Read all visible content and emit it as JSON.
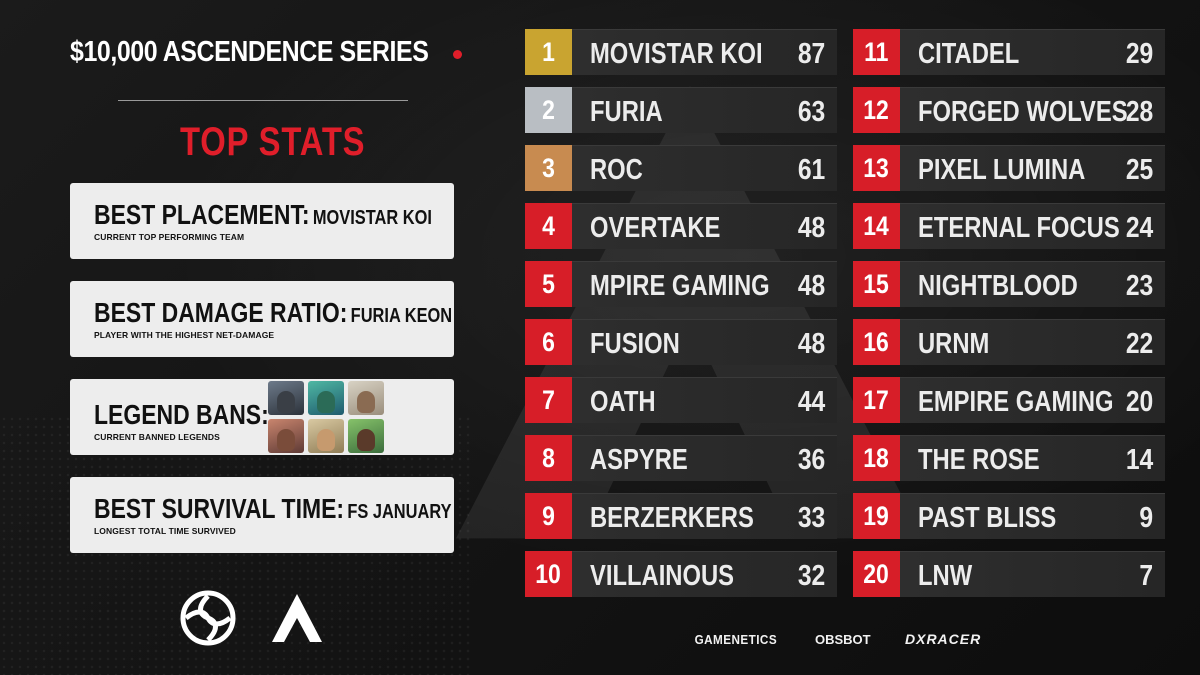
{
  "header": {
    "title": "$10,000 ASCENDENCE SERIES",
    "section_title": "TOP STATS",
    "accent_color": "#e01e2a"
  },
  "stats": [
    {
      "label": "BEST PLACEMENT:",
      "value": "MOVISTAR KOI",
      "sub": "CURRENT TOP PERFORMING TEAM"
    },
    {
      "label": "BEST DAMAGE RATIO:",
      "value": "FURIA KEON",
      "sub": "PLAYER WITH THE HIGHEST NET-DAMAGE"
    },
    {
      "label": "LEGEND BANS:",
      "value": "",
      "sub": "CURRENT BANNED LEGENDS"
    },
    {
      "label": "BEST SURVIVAL TIME:",
      "value": "FS JANUARY",
      "sub": "LONGEST TOTAL TIME SURVIVED"
    }
  ],
  "standings": [
    {
      "rank": "1",
      "team": "MOVISTAR KOI",
      "points": "87",
      "tier": "gold"
    },
    {
      "rank": "2",
      "team": "FURIA",
      "points": "63",
      "tier": "silver"
    },
    {
      "rank": "3",
      "team": "ROC",
      "points": "61",
      "tier": "bronze"
    },
    {
      "rank": "4",
      "team": "OVERTAKE",
      "points": "48",
      "tier": "red"
    },
    {
      "rank": "5",
      "team": "MPIRE GAMING",
      "points": "48",
      "tier": "red"
    },
    {
      "rank": "6",
      "team": "FUSION",
      "points": "48",
      "tier": "red"
    },
    {
      "rank": "7",
      "team": "OATH",
      "points": "44",
      "tier": "red"
    },
    {
      "rank": "8",
      "team": "ASPYRE",
      "points": "36",
      "tier": "red"
    },
    {
      "rank": "9",
      "team": "BERZERKERS",
      "points": "33",
      "tier": "red"
    },
    {
      "rank": "10",
      "team": "VILLAINOUS",
      "points": "32",
      "tier": "red"
    },
    {
      "rank": "11",
      "team": "CITADEL",
      "points": "29",
      "tier": "red"
    },
    {
      "rank": "12",
      "team": "FORGED WOLVES",
      "points": "28",
      "tier": "red"
    },
    {
      "rank": "13",
      "team": "PIXEL LUMINA",
      "points": "25",
      "tier": "red"
    },
    {
      "rank": "14",
      "team": "ETERNAL FOCUS",
      "points": "24",
      "tier": "red"
    },
    {
      "rank": "15",
      "team": "NIGHTBLOOD",
      "points": "23",
      "tier": "red"
    },
    {
      "rank": "16",
      "team": "URNM",
      "points": "22",
      "tier": "red"
    },
    {
      "rank": "17",
      "team": "EMPIRE GAMING",
      "points": "20",
      "tier": "red"
    },
    {
      "rank": "18",
      "team": "THE ROSE",
      "points": "14",
      "tier": "red"
    },
    {
      "rank": "19",
      "team": "PAST BLISS",
      "points": "9",
      "tier": "red"
    },
    {
      "rank": "20",
      "team": "LNW",
      "points": "7",
      "tier": "red"
    }
  ],
  "sponsors": [
    "GAMENETICS",
    "OBSBOT",
    "DXRACER"
  ],
  "colors": {
    "gold": "#c9a430",
    "silver": "#b9bec3",
    "bronze": "#c88b50",
    "red": "#d71e28"
  }
}
